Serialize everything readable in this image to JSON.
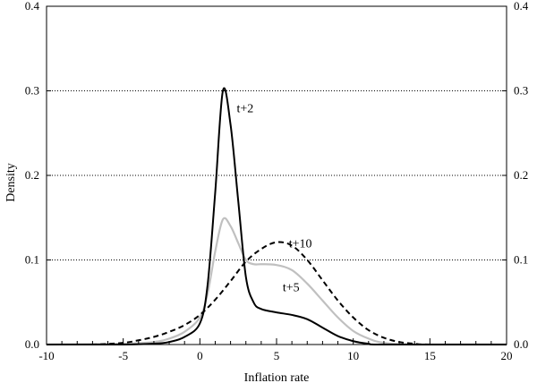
{
  "chart_data": {
    "type": "line",
    "title": "",
    "xlabel": "Inflation rate",
    "ylabel": "Density",
    "xlim": [
      -10,
      20
    ],
    "ylim": [
      0,
      0.4
    ],
    "x_ticks": [
      -10,
      -5,
      0,
      5,
      10,
      15,
      20
    ],
    "x_tick_labels": [
      "-10",
      "-5",
      "0",
      "5",
      "10",
      "15",
      "20"
    ],
    "y_ticks": [
      0,
      0.1,
      0.2,
      0.3,
      0.4
    ],
    "y_tick_labels": [
      "0.0",
      "0.1",
      "0.2",
      "0.3",
      "0.4"
    ],
    "right_axis_labels": true,
    "grid": "horizontal dotted",
    "legend": "inline labels",
    "series": [
      {
        "name": "t+2",
        "color": "#000000",
        "style": "solid",
        "label_at": [
          2.4,
          0.28
        ],
        "points": [
          [
            -10,
            0
          ],
          [
            -5,
            0
          ],
          [
            -3,
            0.001
          ],
          [
            -2,
            0.003
          ],
          [
            -1,
            0.009
          ],
          [
            0,
            0.025
          ],
          [
            0.5,
            0.07
          ],
          [
            1,
            0.18
          ],
          [
            1.5,
            0.3
          ],
          [
            2,
            0.26
          ],
          [
            2.5,
            0.17
          ],
          [
            3,
            0.08
          ],
          [
            3.5,
            0.05
          ],
          [
            4,
            0.042
          ],
          [
            5,
            0.038
          ],
          [
            6,
            0.035
          ],
          [
            7,
            0.03
          ],
          [
            8,
            0.02
          ],
          [
            9,
            0.01
          ],
          [
            10,
            0.004
          ],
          [
            11,
            0.001
          ],
          [
            12,
            0
          ],
          [
            20,
            0
          ]
        ]
      },
      {
        "name": "t+5",
        "color": "#c0c0c0",
        "style": "solid",
        "label_at": [
          5.4,
          0.068
        ],
        "points": [
          [
            -10,
            0
          ],
          [
            -5,
            0.001
          ],
          [
            -3,
            0.003
          ],
          [
            -2,
            0.007
          ],
          [
            -1,
            0.015
          ],
          [
            0,
            0.032
          ],
          [
            0.5,
            0.06
          ],
          [
            1,
            0.11
          ],
          [
            1.5,
            0.148
          ],
          [
            2,
            0.14
          ],
          [
            2.5,
            0.12
          ],
          [
            3,
            0.1
          ],
          [
            3.5,
            0.095
          ],
          [
            4,
            0.095
          ],
          [
            5,
            0.094
          ],
          [
            6,
            0.088
          ],
          [
            7,
            0.072
          ],
          [
            8,
            0.052
          ],
          [
            9,
            0.032
          ],
          [
            10,
            0.016
          ],
          [
            11,
            0.007
          ],
          [
            12,
            0.002
          ],
          [
            14,
            0
          ],
          [
            20,
            0
          ]
        ]
      },
      {
        "name": "t+10",
        "color": "#000000",
        "style": "dashed",
        "label_at": [
          5.8,
          0.12
        ],
        "points": [
          [
            -10,
            0
          ],
          [
            -7,
            0
          ],
          [
            -5,
            0.002
          ],
          [
            -4,
            0.005
          ],
          [
            -3,
            0.009
          ],
          [
            -2,
            0.015
          ],
          [
            -1,
            0.023
          ],
          [
            0,
            0.035
          ],
          [
            1,
            0.053
          ],
          [
            2,
            0.075
          ],
          [
            3,
            0.098
          ],
          [
            4,
            0.113
          ],
          [
            5,
            0.121
          ],
          [
            6,
            0.117
          ],
          [
            7,
            0.1
          ],
          [
            8,
            0.076
          ],
          [
            9,
            0.052
          ],
          [
            10,
            0.032
          ],
          [
            11,
            0.017
          ],
          [
            12,
            0.008
          ],
          [
            13,
            0.003
          ],
          [
            14,
            0.001
          ],
          [
            15,
            0
          ],
          [
            20,
            0
          ]
        ]
      }
    ]
  }
}
